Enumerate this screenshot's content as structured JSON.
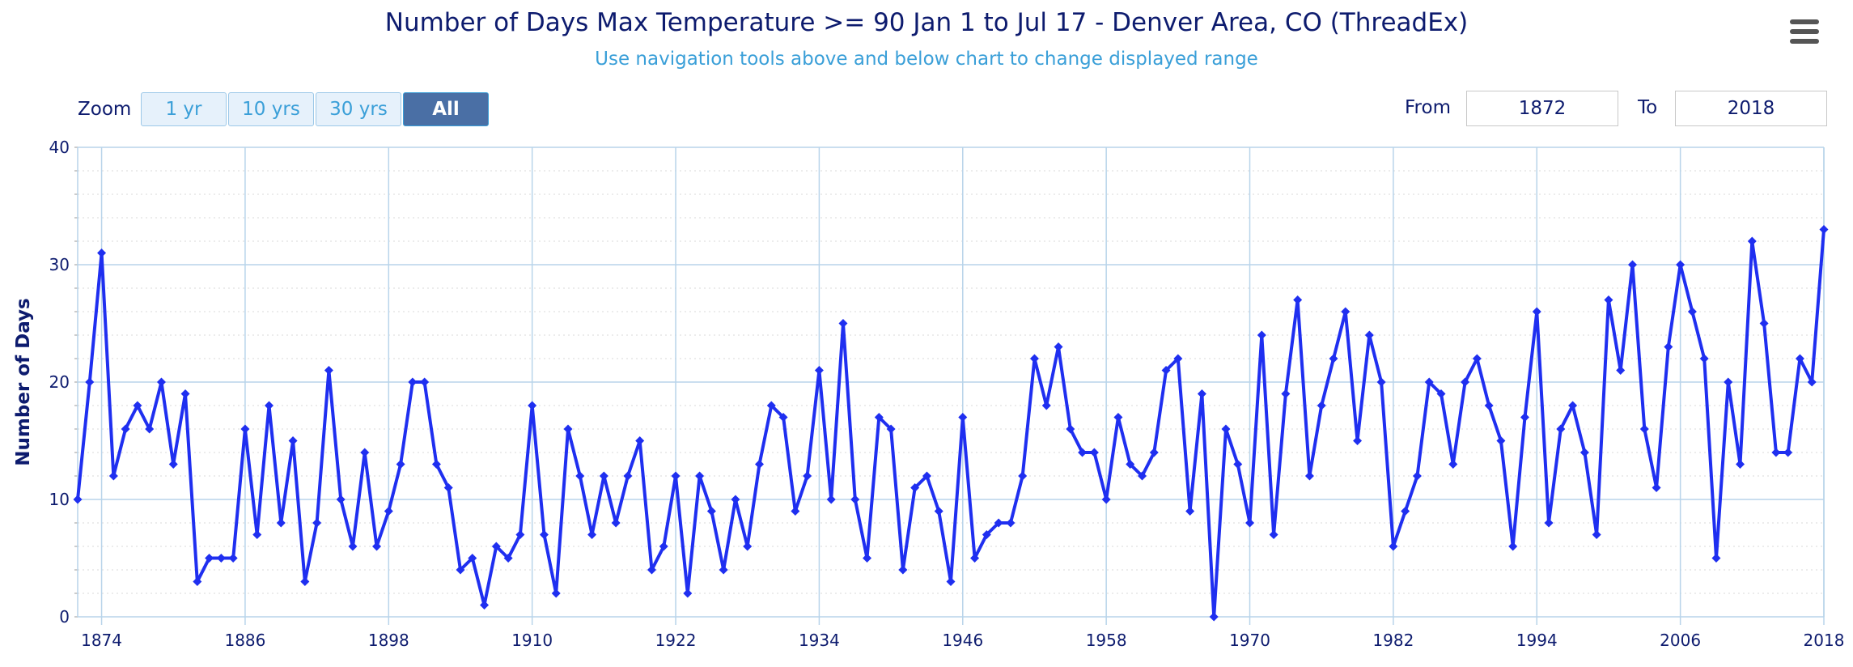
{
  "title": "Number of Days Max Temperature >= 90 Jan 1 to Jul 17 - Denver Area, CO (ThreadEx)",
  "subtitle": "Use navigation tools above and below chart to change displayed range",
  "zoom": {
    "label": "Zoom",
    "buttons": [
      "1 yr",
      "10 yrs",
      "30 yrs",
      "All"
    ],
    "active": "All"
  },
  "range": {
    "from_label": "From",
    "from_value": "1872",
    "to_label": "To",
    "to_value": "2018"
  },
  "colors": {
    "series": "#1f2ff0",
    "grid": "#b8d4ea",
    "text": "#0d1b6e",
    "subtitle": "#3a9fd8",
    "active_button": "#4a6fa5"
  },
  "chart_data": {
    "type": "line",
    "title": "Number of Days Max Temperature >= 90 Jan 1 to Jul 17 - Denver Area, CO (ThreadEx)",
    "xlabel": "",
    "ylabel": "Number of Days",
    "xlim": [
      1872,
      2018
    ],
    "ylim": [
      0,
      40
    ],
    "x_ticks": [
      "1874",
      "1886",
      "1898",
      "1910",
      "1922",
      "1934",
      "1946",
      "1958",
      "1970",
      "1982",
      "1994",
      "2006",
      "2018"
    ],
    "y_ticks": [
      "0",
      "10",
      "20",
      "30",
      "40"
    ],
    "grid": true,
    "series": [
      {
        "x": [
          1872,
          1873,
          1874,
          1875,
          1876,
          1877,
          1878,
          1879,
          1880,
          1881,
          1882,
          1883,
          1884,
          1885,
          1886,
          1887,
          1888,
          1889,
          1890,
          1891,
          1892,
          1893,
          1894,
          1895,
          1896,
          1897,
          1898,
          1899,
          1900,
          1901,
          1902,
          1903,
          1904,
          1905,
          1906,
          1907,
          1908,
          1909,
          1910,
          1911,
          1912,
          1913,
          1914,
          1915,
          1916,
          1917,
          1918,
          1919,
          1920,
          1921,
          1922,
          1923,
          1924,
          1925,
          1926,
          1927,
          1928,
          1929,
          1930,
          1931,
          1932,
          1933,
          1934,
          1935,
          1936,
          1937,
          1938,
          1939,
          1940,
          1941,
          1942,
          1943,
          1944,
          1945,
          1946,
          1947,
          1948,
          1949,
          1950,
          1951,
          1952,
          1953,
          1954,
          1955,
          1956,
          1957,
          1958,
          1959,
          1960,
          1961,
          1962,
          1963,
          1964,
          1965,
          1966,
          1967,
          1968,
          1969,
          1970,
          1971,
          1972,
          1973,
          1974,
          1975,
          1976,
          1977,
          1978,
          1979,
          1980,
          1981,
          1982,
          1983,
          1984,
          1985,
          1986,
          1987,
          1988,
          1989,
          1990,
          1991,
          1992,
          1993,
          1994,
          1995,
          1996,
          1997,
          1998,
          1999,
          2000,
          2001,
          2002,
          2003,
          2004,
          2005,
          2006,
          2007,
          2008,
          2009,
          2010,
          2011,
          2012,
          2013,
          2014,
          2015,
          2016,
          2017,
          2018
        ],
        "values": [
          10,
          20,
          31,
          12,
          16,
          18,
          16,
          20,
          13,
          19,
          3,
          5,
          5,
          5,
          16,
          7,
          18,
          8,
          15,
          3,
          8,
          21,
          10,
          6,
          14,
          6,
          9,
          13,
          20,
          20,
          13,
          11,
          4,
          5,
          1,
          6,
          5,
          7,
          18,
          7,
          2,
          16,
          12,
          7,
          12,
          8,
          12,
          15,
          4,
          6,
          12,
          2,
          12,
          9,
          4,
          10,
          6,
          13,
          18,
          17,
          9,
          12,
          21,
          10,
          25,
          10,
          5,
          17,
          16,
          4,
          11,
          12,
          9,
          3,
          17,
          5,
          7,
          8,
          8,
          12,
          22,
          18,
          23,
          16,
          14,
          14,
          10,
          17,
          13,
          12,
          14,
          21,
          22,
          9,
          19,
          0,
          16,
          13,
          8,
          24,
          7,
          19,
          27,
          12,
          18,
          22,
          26,
          15,
          24,
          20,
          6,
          9,
          12,
          20,
          19,
          13,
          20,
          22,
          18,
          15,
          6,
          17,
          26,
          8,
          16,
          18,
          14,
          7,
          27,
          21,
          30,
          16,
          11,
          23,
          30,
          26,
          22,
          5,
          20,
          13,
          32,
          25,
          14,
          14,
          22,
          20,
          33
        ]
      }
    ]
  }
}
